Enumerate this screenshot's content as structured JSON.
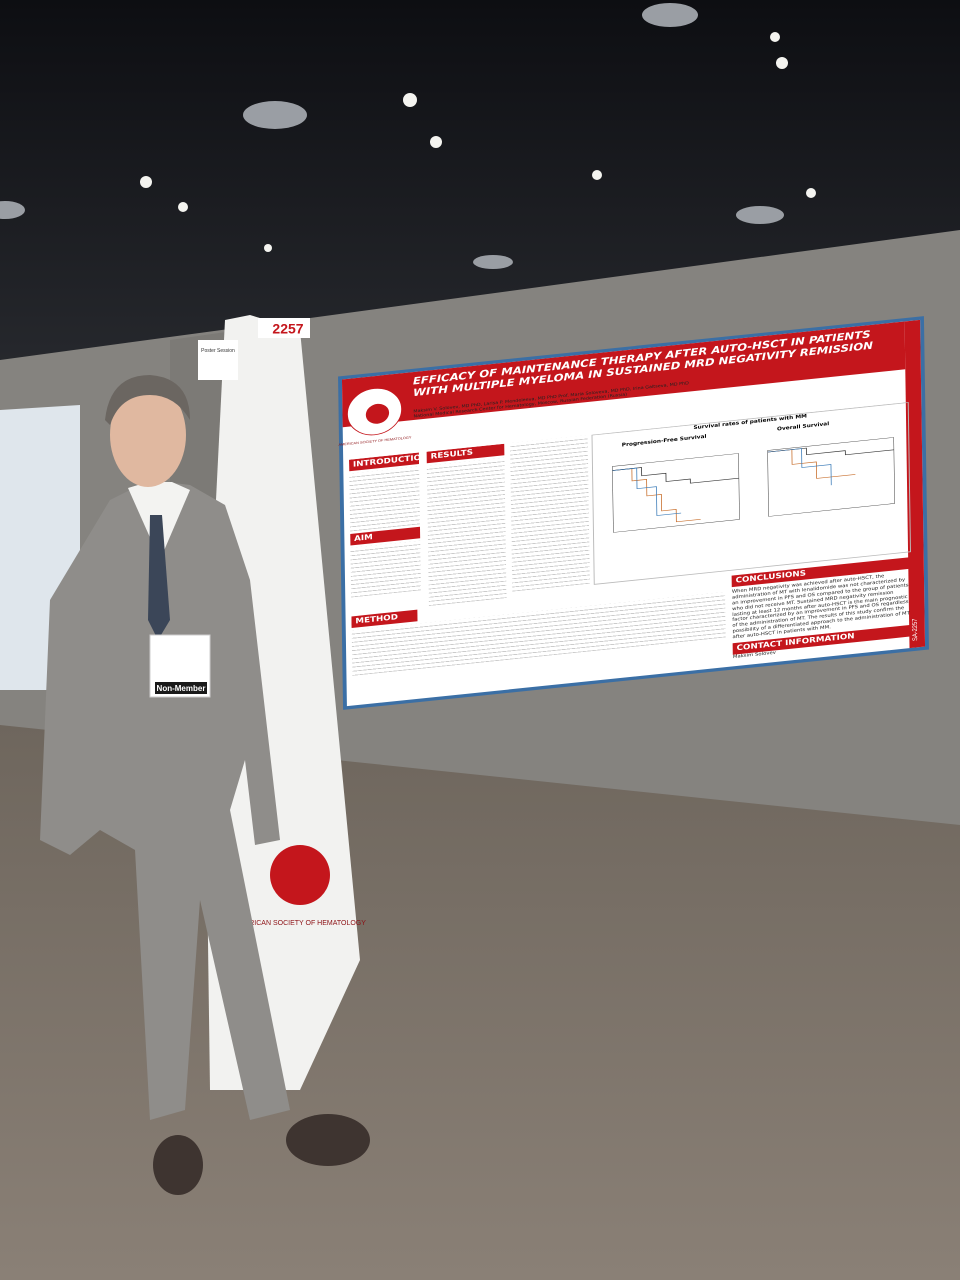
{
  "board": {
    "number": "2257",
    "session_label": "Poster Session"
  },
  "poster": {
    "title": "EFFICACY OF MAINTENANCE THERAPY AFTER AUTO-HSCT IN PATIENTS WITH MULTIPLE MYELOMA IN SUSTAINED MRD NEGATIVITY REMISSION",
    "authors": "Maksim V. Solovev, MD PhD, Larisa P. Mendeleeva, MD PhD Prof. Maria Soloveva, MD PhD, Irina Galtseva, MD PhD",
    "affiliation": "National Medical Research Center for Hematology, Moscow, Russian Federation (Russia)",
    "society": "AMERICAN SOCIETY OF HEMATOLOGY",
    "sections": {
      "introduction": "INTRODUCTION",
      "aim": "AIM",
      "results": "RESULTS",
      "method": "METHOD",
      "conclusions": "CONCLUSIONS",
      "contact": "CONTACT INFORMATION"
    },
    "figure": {
      "title": "Survival rates of patients with MM",
      "left": "Progression-Free Survival",
      "right": "Overall Survival"
    },
    "conclusions_text": "When MRD negativity was achieved after auto-HSCT, the administration of MT with lenalidomide was not characterized by an improvement in PFS and OS compared to the group of patients who did not receive MT. Sustained MRD negativity remission lasting at least 12 months after auto-HSCT is the main prognostic factor characterized by an improvement in PFS and OS regardless of the administration of MT. The results of this study confirm the possibility of a differentiated approach to the administration of MT after auto-HSCT in patients with MM.",
    "contact_name": "Maksim Solovev",
    "side_label": "SA-2257"
  },
  "badge": {
    "status": "Non-Member"
  },
  "stand": {
    "logo_text": "AMERICAN SOCIETY OF HEMATOLOGY"
  }
}
